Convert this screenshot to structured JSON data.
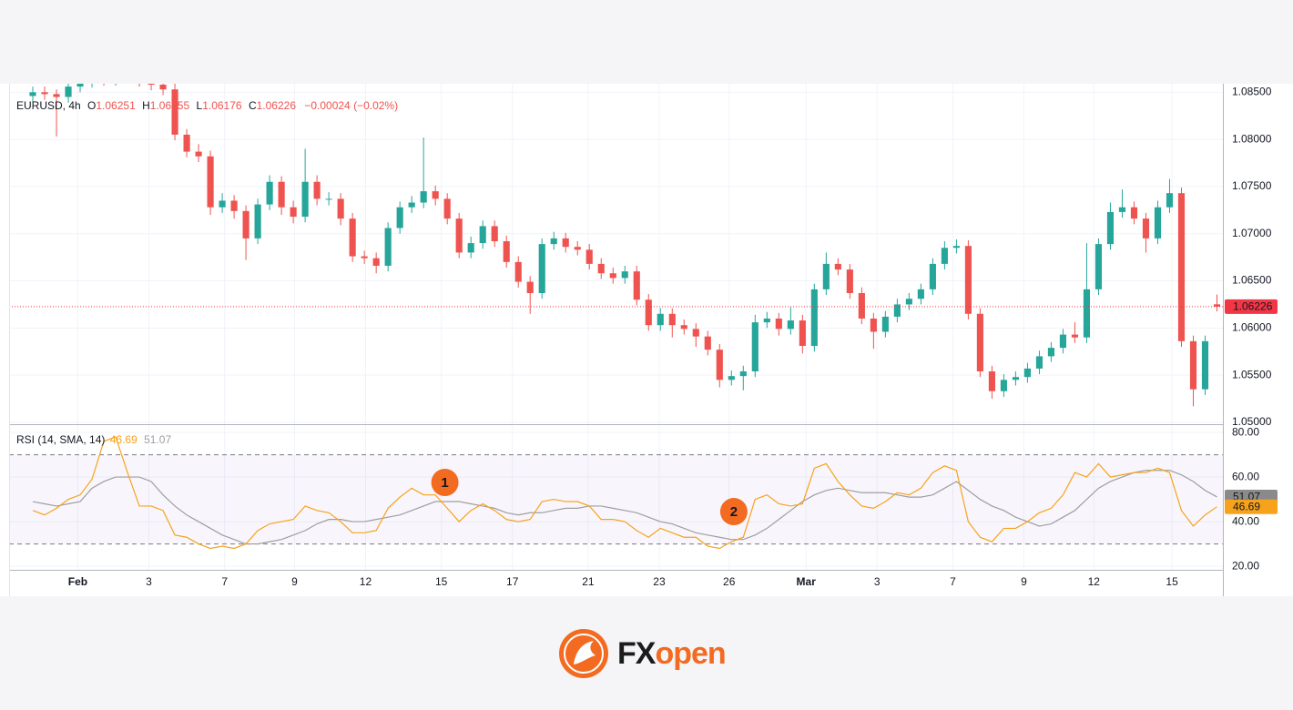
{
  "chart_data": [
    {
      "type": "candlestick",
      "legend": {
        "symbol": "EURUSD, 4h",
        "open_label": "O",
        "open": "1.06251",
        "high_label": "H",
        "high": "1.06355",
        "low_label": "L",
        "low": "1.06176",
        "close_label": "C",
        "close": "1.06226",
        "change": "−0.00024 (−0.02%)"
      },
      "up_color": "#26a69a",
      "down_color": "#ef5350",
      "xlim": [
        -2,
        100.5
      ],
      "ylim": [
        1.0498,
        1.0859
      ],
      "yticks": [
        {
          "value": 1.05,
          "label": "1.05000"
        },
        {
          "value": 1.055,
          "label": "1.05500"
        },
        {
          "value": 1.06,
          "label": "1.06000"
        },
        {
          "value": 1.065,
          "label": "1.06500"
        },
        {
          "value": 1.07,
          "label": "1.07000"
        },
        {
          "value": 1.075,
          "label": "1.07500"
        },
        {
          "value": 1.08,
          "label": "1.08000"
        },
        {
          "value": 1.085,
          "label": "1.08500"
        }
      ],
      "grid": true,
      "last_price": {
        "value": 1.06226,
        "label": "1.06226",
        "color": "#f23645"
      },
      "open": [
        1.0846,
        1.085,
        1.0848,
        1.0845,
        1.0856,
        1.0861,
        1.0865,
        1.0863,
        1.0868,
        1.0865,
        1.0862,
        1.0858,
        1.0853,
        1.0805,
        1.0787,
        1.0782,
        1.0728,
        1.0735,
        1.0724,
        1.0695,
        1.0731,
        1.0755,
        1.0728,
        1.0718,
        1.0755,
        1.0737,
        1.0737,
        1.0716,
        1.0676,
        1.0674,
        1.0666,
        1.0706,
        1.0728,
        1.0733,
        1.0745,
        1.0737,
        1.0716,
        1.068,
        1.069,
        1.0708,
        1.0692,
        1.067,
        1.0649,
        1.0637,
        1.0689,
        1.0695,
        1.0686,
        1.0683,
        1.0668,
        1.0658,
        1.0653,
        1.066,
        1.063,
        1.0603,
        1.0615,
        1.0603,
        1.0599,
        1.0591,
        1.0577,
        1.0545,
        1.0549,
        1.0554,
        1.0606,
        1.061,
        1.0599,
        1.0608,
        1.0581,
        1.0641,
        1.0668,
        1.0662,
        1.0637,
        1.061,
        1.0596,
        1.0612,
        1.0625,
        1.0631,
        1.0641,
        1.0668,
        1.0685,
        1.0687,
        1.0615,
        1.0554,
        1.0533,
        1.0545,
        1.0548,
        1.0557,
        1.057,
        1.0579,
        1.0593,
        1.059,
        1.0641,
        1.0689,
        1.0723,
        1.0728,
        1.0716,
        1.0695,
        1.0728,
        1.0743,
        1.0586,
        1.0535,
        1.06251
      ],
      "high": [
        1.0856,
        1.0856,
        1.0853,
        1.0862,
        1.0867,
        1.0871,
        1.0871,
        1.0874,
        1.0874,
        1.0871,
        1.0868,
        1.0864,
        1.0859,
        1.0811,
        1.0795,
        1.0788,
        1.0743,
        1.0741,
        1.073,
        1.0737,
        1.0762,
        1.0761,
        1.0735,
        1.079,
        1.0762,
        1.0744,
        1.0743,
        1.0722,
        1.0682,
        1.068,
        1.0712,
        1.0734,
        1.074,
        1.0802,
        1.0751,
        1.0743,
        1.0722,
        1.0697,
        1.0714,
        1.0714,
        1.0698,
        1.0676,
        1.0655,
        1.0695,
        1.0702,
        1.0701,
        1.0692,
        1.0689,
        1.0674,
        1.0664,
        1.0666,
        1.0666,
        1.0636,
        1.0621,
        1.0621,
        1.0609,
        1.0605,
        1.0597,
        1.0583,
        1.0555,
        1.056,
        1.0614,
        1.0617,
        1.0616,
        1.0622,
        1.0614,
        1.0647,
        1.068,
        1.0674,
        1.0668,
        1.0643,
        1.0616,
        1.0618,
        1.0631,
        1.0637,
        1.0647,
        1.0674,
        1.0692,
        1.0694,
        1.0693,
        1.0621,
        1.056,
        1.0551,
        1.0554,
        1.0563,
        1.0576,
        1.0585,
        1.0599,
        1.0606,
        1.069,
        1.0695,
        1.0733,
        1.0747,
        1.0734,
        1.0722,
        1.0735,
        1.0758,
        1.0749,
        1.0592,
        1.0592,
        1.06355
      ],
      "low": [
        1.084,
        1.0842,
        1.0803,
        1.0839,
        1.085,
        1.0855,
        1.0857,
        1.0857,
        1.0859,
        1.0856,
        1.0852,
        1.0847,
        1.0799,
        1.0781,
        1.0776,
        1.072,
        1.0722,
        1.0716,
        1.0672,
        1.0689,
        1.0725,
        1.072,
        1.0711,
        1.0712,
        1.073,
        1.073,
        1.0709,
        1.067,
        1.0668,
        1.0658,
        1.066,
        1.07,
        1.0722,
        1.0727,
        1.073,
        1.071,
        1.0674,
        1.0674,
        1.0684,
        1.0686,
        1.0664,
        1.0643,
        1.0615,
        1.0631,
        1.0683,
        1.068,
        1.0677,
        1.0662,
        1.0652,
        1.0647,
        1.0647,
        1.0624,
        1.0597,
        1.0597,
        1.059,
        1.0593,
        1.058,
        1.0571,
        1.0537,
        1.0539,
        1.0534,
        1.0548,
        1.06,
        1.0592,
        1.0593,
        1.0573,
        1.0575,
        1.0635,
        1.0656,
        1.0631,
        1.0604,
        1.0578,
        1.059,
        1.0606,
        1.0619,
        1.0625,
        1.0635,
        1.0662,
        1.0679,
        1.0609,
        1.0548,
        1.0525,
        1.0527,
        1.0539,
        1.0542,
        1.0551,
        1.0564,
        1.0573,
        1.0584,
        1.0584,
        1.0635,
        1.0683,
        1.0717,
        1.071,
        1.068,
        1.0689,
        1.0722,
        1.058,
        1.0517,
        1.0529,
        1.06176
      ],
      "close": [
        1.085,
        1.0848,
        1.0845,
        1.0856,
        1.0861,
        1.0865,
        1.0863,
        1.0868,
        1.0865,
        1.0862,
        1.0858,
        1.0853,
        1.0805,
        1.0787,
        1.0782,
        1.0728,
        1.0735,
        1.0724,
        1.0695,
        1.0731,
        1.0755,
        1.0728,
        1.0718,
        1.0755,
        1.0737,
        1.0737,
        1.0716,
        1.0676,
        1.0674,
        1.0666,
        1.0706,
        1.0728,
        1.0733,
        1.0745,
        1.0737,
        1.0716,
        1.068,
        1.069,
        1.0708,
        1.0692,
        1.067,
        1.0649,
        1.0637,
        1.0689,
        1.0695,
        1.0686,
        1.0683,
        1.0668,
        1.0658,
        1.0653,
        1.066,
        1.063,
        1.0603,
        1.0615,
        1.0603,
        1.0599,
        1.0591,
        1.0577,
        1.0545,
        1.0549,
        1.0554,
        1.0606,
        1.061,
        1.0599,
        1.0608,
        1.0581,
        1.0641,
        1.0668,
        1.0662,
        1.0637,
        1.061,
        1.0596,
        1.0612,
        1.0625,
        1.0631,
        1.0641,
        1.0668,
        1.0685,
        1.0687,
        1.0615,
        1.0554,
        1.0533,
        1.0545,
        1.0548,
        1.0557,
        1.057,
        1.0579,
        1.0593,
        1.059,
        1.0641,
        1.0689,
        1.0723,
        1.0728,
        1.0716,
        1.0695,
        1.0728,
        1.0743,
        1.0586,
        1.0535,
        1.0586,
        1.06226
      ]
    },
    {
      "type": "line",
      "title": "RSI (14, SMA, 14)",
      "xlim": [
        -2,
        100.5
      ],
      "xticks": [
        {
          "value": 3.8,
          "label": "Feb"
        },
        {
          "value": 9.8,
          "label": "3"
        },
        {
          "value": 16.2,
          "label": "7"
        },
        {
          "value": 22.1,
          "label": "9"
        },
        {
          "value": 28.1,
          "label": "12"
        },
        {
          "value": 34.5,
          "label": "15"
        },
        {
          "value": 40.5,
          "label": "17"
        },
        {
          "value": 46.9,
          "label": "21"
        },
        {
          "value": 52.9,
          "label": "23"
        },
        {
          "value": 58.8,
          "label": "26"
        },
        {
          "value": 65.3,
          "label": "Mar"
        },
        {
          "value": 71.3,
          "label": "3"
        },
        {
          "value": 77.7,
          "label": "7"
        },
        {
          "value": 83.7,
          "label": "9"
        },
        {
          "value": 89.6,
          "label": "12"
        },
        {
          "value": 96.2,
          "label": "15"
        }
      ],
      "ylim": [
        18.4,
        83.3
      ],
      "yticks": [
        {
          "value": 20,
          "label": "20.00"
        },
        {
          "value": 40,
          "label": "40.00"
        },
        {
          "value": 60,
          "label": "60.00"
        },
        {
          "value": 80,
          "label": "80.00"
        }
      ],
      "bands": [
        30,
        70
      ],
      "grid": true,
      "series": [
        {
          "color": "#f7a21b",
          "current": {
            "value": 46.69,
            "label": "46.69"
          },
          "values": [
            45,
            43,
            46,
            50,
            52,
            59,
            76,
            78,
            62,
            47,
            47,
            45,
            34,
            33,
            30,
            28,
            29,
            28,
            30,
            36,
            39,
            40,
            41,
            47,
            45,
            44,
            40,
            35,
            35,
            36,
            46,
            51,
            55,
            52,
            52,
            46,
            40,
            45,
            48,
            45,
            41,
            40,
            41,
            49,
            50,
            49,
            49,
            47,
            41,
            41,
            40,
            36,
            33,
            37,
            35,
            33,
            33,
            29,
            28,
            31,
            33,
            50,
            52,
            48,
            47,
            48,
            64,
            66,
            58,
            52,
            47,
            46,
            49,
            53,
            52,
            55,
            62,
            65,
            63,
            40,
            33,
            31,
            37,
            37,
            40,
            44,
            46,
            52,
            62,
            60,
            66,
            60,
            61,
            62,
            62,
            64,
            62,
            45,
            38,
            43,
            46.69
          ]
        },
        {
          "color": "#9e9e9e",
          "current": {
            "value": 51.07,
            "label": "51.07"
          },
          "values": [
            49,
            48,
            47,
            48,
            49,
            55,
            58,
            60,
            60,
            60,
            58,
            52,
            47,
            43,
            40,
            37,
            34,
            32,
            30,
            30,
            31,
            32,
            34,
            36,
            39,
            41,
            41,
            40,
            40,
            41,
            42,
            43,
            45,
            47,
            49,
            49,
            49,
            48,
            47,
            46,
            44,
            43,
            44,
            44,
            45,
            46,
            46,
            47,
            47,
            46,
            45,
            44,
            42,
            40,
            39,
            37,
            35,
            34,
            33,
            32,
            32,
            34,
            37,
            41,
            45,
            49,
            52,
            54,
            55,
            54,
            53,
            53,
            53,
            52,
            51,
            51,
            52,
            55,
            58,
            54,
            50,
            47,
            45,
            42,
            40,
            38,
            39,
            42,
            45,
            50,
            55,
            58,
            60,
            62,
            63,
            63,
            63,
            61,
            58,
            54,
            51.07
          ]
        }
      ],
      "annotations": [
        {
          "label": "1",
          "x": 34.8,
          "y": 57.6
        },
        {
          "label": "2",
          "x": 59.2,
          "y": 44.5
        }
      ]
    }
  ],
  "logo": {
    "brand_dark": "FX",
    "brand_accent": "open"
  }
}
